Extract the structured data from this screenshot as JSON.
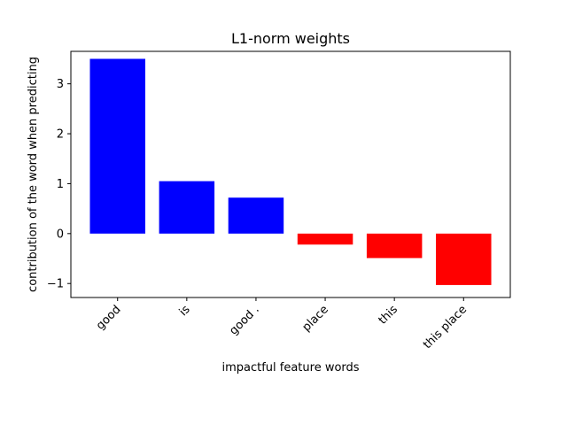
{
  "chart_data": {
    "type": "bar",
    "title": "L1-norm weights",
    "xlabel": "impactful feature words",
    "ylabel": "contribution of the word when predicting",
    "categories": [
      "good",
      "is",
      "good .",
      "place",
      "this",
      "this place"
    ],
    "values": [
      3.5,
      1.05,
      0.72,
      -0.22,
      -0.49,
      -1.03
    ],
    "colors": [
      "#0000ff",
      "#0000ff",
      "#0000ff",
      "#ff0000",
      "#ff0000",
      "#ff0000"
    ],
    "ylim": [
      -1.28,
      3.65
    ],
    "yticks": [
      -1,
      0,
      1,
      2,
      3
    ],
    "ytick_labels": [
      "−1",
      "0",
      "1",
      "2",
      "3"
    ],
    "grid": false,
    "legend": "none"
  }
}
